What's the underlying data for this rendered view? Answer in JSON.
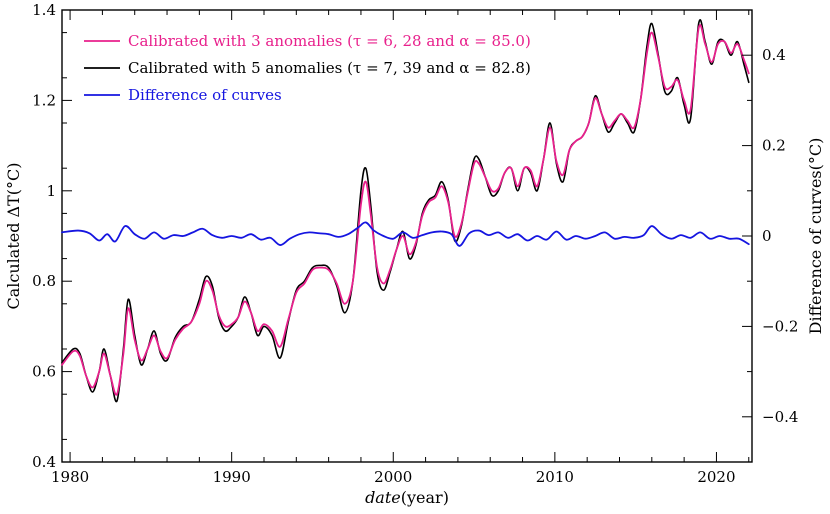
{
  "chart_data": {
    "type": "line",
    "xlabel_italic": "date",
    "xlabel_unit": "(year)",
    "ylabel_left": "Calculated ΔT(°C)",
    "ylabel_right": "Difference of curves(°C)",
    "xlim": [
      1979.5,
      2022.2
    ],
    "ylim_left": [
      0.4,
      1.4
    ],
    "ylim_right": [
      -0.5,
      0.5
    ],
    "x_ticks": [
      1980,
      1990,
      2000,
      2010,
      2020
    ],
    "x_tick_labels": [
      "1980",
      "1990",
      "2000",
      "2010",
      "2020"
    ],
    "y_ticks_left": [
      0.4,
      0.6,
      0.8,
      1.0,
      1.2,
      1.4
    ],
    "y_tick_labels_left": [
      "0.4",
      "0.6",
      "0.8",
      "1",
      "1.2",
      "1.4"
    ],
    "y_ticks_right": [
      -0.4,
      -0.2,
      0,
      0.2,
      0.4
    ],
    "y_tick_labels_right": [
      "−0.4",
      "−0.2",
      "0",
      "0.2",
      "0.4"
    ],
    "grid": false,
    "legend_position": "top-left",
    "legend": [
      {
        "label": "Calibrated with 3 anomalies (τ = 6, 28 and α = 85.0)",
        "color": "#e8208c"
      },
      {
        "label": "Calibrated with 5 anomalies (τ = 7, 39 and α = 82.8)",
        "color": "#000000"
      },
      {
        "label": "Difference of curves",
        "color": "#1515e0"
      }
    ],
    "series": [
      {
        "color": "#000000",
        "axis": "left",
        "x": [
          1979.5,
          1980.2,
          1980.6,
          1981.0,
          1981.4,
          1981.8,
          1982.1,
          1982.5,
          1982.9,
          1983.3,
          1983.6,
          1984.0,
          1984.4,
          1984.8,
          1985.2,
          1985.6,
          1986.0,
          1986.5,
          1987.0,
          1987.5,
          1988.0,
          1988.4,
          1988.8,
          1989.2,
          1989.6,
          1990.0,
          1990.4,
          1990.8,
          1991.2,
          1991.6,
          1992.0,
          1992.5,
          1993.0,
          1993.5,
          1994.0,
          1994.5,
          1995.0,
          1995.5,
          1996.0,
          1996.5,
          1997.0,
          1997.5,
          1998.0,
          1998.3,
          1998.6,
          1999.0,
          1999.4,
          1999.8,
          2000.2,
          2000.6,
          2001.0,
          2001.4,
          2001.8,
          2002.2,
          2002.6,
          2003.0,
          2003.4,
          2003.8,
          2004.2,
          2004.6,
          2005.0,
          2005.3,
          2005.7,
          2006.1,
          2006.5,
          2006.9,
          2007.3,
          2007.7,
          2008.1,
          2008.5,
          2008.9,
          2009.3,
          2009.7,
          2010.1,
          2010.5,
          2010.9,
          2011.3,
          2011.7,
          2012.1,
          2012.5,
          2012.9,
          2013.3,
          2013.7,
          2014.1,
          2014.5,
          2014.9,
          2015.3,
          2015.7,
          2016.0,
          2016.4,
          2016.8,
          2017.2,
          2017.6,
          2018.0,
          2018.4,
          2018.9,
          2019.3,
          2019.7,
          2020.1,
          2020.5,
          2020.9,
          2021.3,
          2021.7,
          2022.0
        ],
        "values": [
          0.62,
          0.65,
          0.64,
          0.59,
          0.555,
          0.6,
          0.65,
          0.59,
          0.535,
          0.65,
          0.76,
          0.68,
          0.615,
          0.65,
          0.69,
          0.64,
          0.625,
          0.675,
          0.7,
          0.71,
          0.76,
          0.81,
          0.79,
          0.72,
          0.69,
          0.7,
          0.72,
          0.765,
          0.73,
          0.68,
          0.7,
          0.68,
          0.63,
          0.71,
          0.78,
          0.8,
          0.83,
          0.835,
          0.83,
          0.79,
          0.73,
          0.8,
          1.0,
          1.05,
          0.97,
          0.82,
          0.78,
          0.82,
          0.87,
          0.91,
          0.85,
          0.88,
          0.95,
          0.98,
          0.99,
          1.02,
          0.98,
          0.89,
          0.92,
          1.0,
          1.07,
          1.07,
          1.03,
          0.99,
          1.0,
          1.04,
          1.05,
          1.0,
          1.05,
          1.04,
          1.0,
          1.07,
          1.15,
          1.06,
          1.02,
          1.09,
          1.11,
          1.12,
          1.15,
          1.21,
          1.17,
          1.13,
          1.15,
          1.17,
          1.15,
          1.13,
          1.2,
          1.32,
          1.37,
          1.3,
          1.22,
          1.22,
          1.25,
          1.19,
          1.16,
          1.37,
          1.33,
          1.28,
          1.33,
          1.33,
          1.3,
          1.33,
          1.28,
          1.24
        ]
      },
      {
        "color": "#e8208c",
        "axis": "left",
        "x": [
          1979.5,
          1980.2,
          1980.6,
          1981.0,
          1981.4,
          1981.8,
          1982.1,
          1982.5,
          1982.9,
          1983.3,
          1983.6,
          1984.0,
          1984.4,
          1984.8,
          1985.2,
          1985.6,
          1986.0,
          1986.5,
          1987.0,
          1987.5,
          1988.0,
          1988.4,
          1988.8,
          1989.2,
          1989.6,
          1990.0,
          1990.4,
          1990.8,
          1991.2,
          1991.6,
          1992.0,
          1992.5,
          1993.0,
          1993.5,
          1994.0,
          1994.5,
          1995.0,
          1995.5,
          1996.0,
          1996.5,
          1997.0,
          1997.5,
          1998.0,
          1998.3,
          1998.6,
          1999.0,
          1999.4,
          1999.8,
          2000.2,
          2000.6,
          2001.0,
          2001.4,
          2001.8,
          2002.2,
          2002.6,
          2003.0,
          2003.4,
          2003.8,
          2004.2,
          2004.6,
          2005.0,
          2005.3,
          2005.7,
          2006.1,
          2006.5,
          2006.9,
          2007.3,
          2007.7,
          2008.1,
          2008.5,
          2008.9,
          2009.3,
          2009.7,
          2010.1,
          2010.5,
          2010.9,
          2011.3,
          2011.7,
          2012.1,
          2012.5,
          2012.9,
          2013.3,
          2013.7,
          2014.1,
          2014.5,
          2014.9,
          2015.3,
          2015.7,
          2016.0,
          2016.4,
          2016.8,
          2017.2,
          2017.6,
          2018.0,
          2018.4,
          2018.9,
          2019.3,
          2019.7,
          2020.1,
          2020.5,
          2020.9,
          2021.3,
          2021.7,
          2022.0
        ],
        "values": [
          0.615,
          0.645,
          0.635,
          0.59,
          0.565,
          0.6,
          0.64,
          0.59,
          0.55,
          0.64,
          0.74,
          0.67,
          0.625,
          0.65,
          0.68,
          0.645,
          0.63,
          0.67,
          0.695,
          0.71,
          0.75,
          0.8,
          0.78,
          0.725,
          0.7,
          0.705,
          0.72,
          0.755,
          0.73,
          0.69,
          0.705,
          0.69,
          0.655,
          0.715,
          0.775,
          0.795,
          0.825,
          0.83,
          0.825,
          0.795,
          0.75,
          0.8,
          0.97,
          1.02,
          0.95,
          0.83,
          0.795,
          0.825,
          0.87,
          0.9,
          0.86,
          0.885,
          0.945,
          0.975,
          0.985,
          1.01,
          0.975,
          0.9,
          0.925,
          0.995,
          1.06,
          1.06,
          1.03,
          1.0,
          1.005,
          1.04,
          1.05,
          1.01,
          1.05,
          1.045,
          1.01,
          1.07,
          1.14,
          1.065,
          1.035,
          1.09,
          1.11,
          1.12,
          1.15,
          1.205,
          1.17,
          1.14,
          1.155,
          1.17,
          1.155,
          1.14,
          1.2,
          1.305,
          1.35,
          1.295,
          1.23,
          1.23,
          1.245,
          1.2,
          1.18,
          1.36,
          1.325,
          1.285,
          1.325,
          1.33,
          1.305,
          1.325,
          1.29,
          1.26
        ]
      },
      {
        "color": "#1515e0",
        "axis": "right",
        "x": [
          1979.5,
          1980.5,
          1981.2,
          1981.8,
          1982.3,
          1982.8,
          1983.4,
          1984.0,
          1984.6,
          1985.2,
          1985.8,
          1986.4,
          1987.0,
          1987.6,
          1988.2,
          1988.8,
          1989.4,
          1990.0,
          1990.6,
          1991.2,
          1991.8,
          1992.4,
          1993.0,
          1993.6,
          1994.2,
          1994.8,
          1995.4,
          1996.0,
          1996.6,
          1997.2,
          1997.8,
          1998.3,
          1998.8,
          1999.4,
          2000.0,
          2000.6,
          2001.2,
          2001.8,
          2002.4,
          2003.0,
          2003.6,
          2004.1,
          2004.7,
          2005.3,
          2005.9,
          2006.5,
          2007.1,
          2007.7,
          2008.3,
          2008.9,
          2009.5,
          2010.1,
          2010.7,
          2011.3,
          2011.9,
          2012.5,
          2013.1,
          2013.7,
          2014.3,
          2014.9,
          2015.5,
          2016.0,
          2016.6,
          2017.2,
          2017.8,
          2018.4,
          2019.0,
          2019.6,
          2020.2,
          2020.8,
          2021.4,
          2022.0
        ],
        "values": [
          0.008,
          0.012,
          0.006,
          -0.01,
          0.004,
          -0.012,
          0.022,
          0.004,
          -0.006,
          0.008,
          -0.006,
          0.002,
          0.0,
          0.008,
          0.016,
          0.002,
          -0.004,
          0.0,
          -0.004,
          0.004,
          -0.008,
          -0.004,
          -0.02,
          -0.006,
          0.004,
          0.008,
          0.006,
          0.004,
          -0.002,
          0.004,
          0.018,
          0.03,
          0.012,
          0.0,
          -0.006,
          0.008,
          -0.004,
          0.002,
          0.008,
          0.01,
          0.004,
          -0.022,
          0.006,
          0.012,
          0.002,
          0.008,
          -0.004,
          0.004,
          -0.01,
          0.0,
          -0.008,
          0.01,
          -0.008,
          0.0,
          -0.006,
          0.0,
          0.008,
          -0.006,
          -0.002,
          -0.004,
          0.002,
          0.022,
          0.004,
          -0.006,
          0.002,
          -0.004,
          0.008,
          -0.006,
          0.0,
          -0.006,
          -0.006,
          -0.018
        ]
      }
    ]
  }
}
